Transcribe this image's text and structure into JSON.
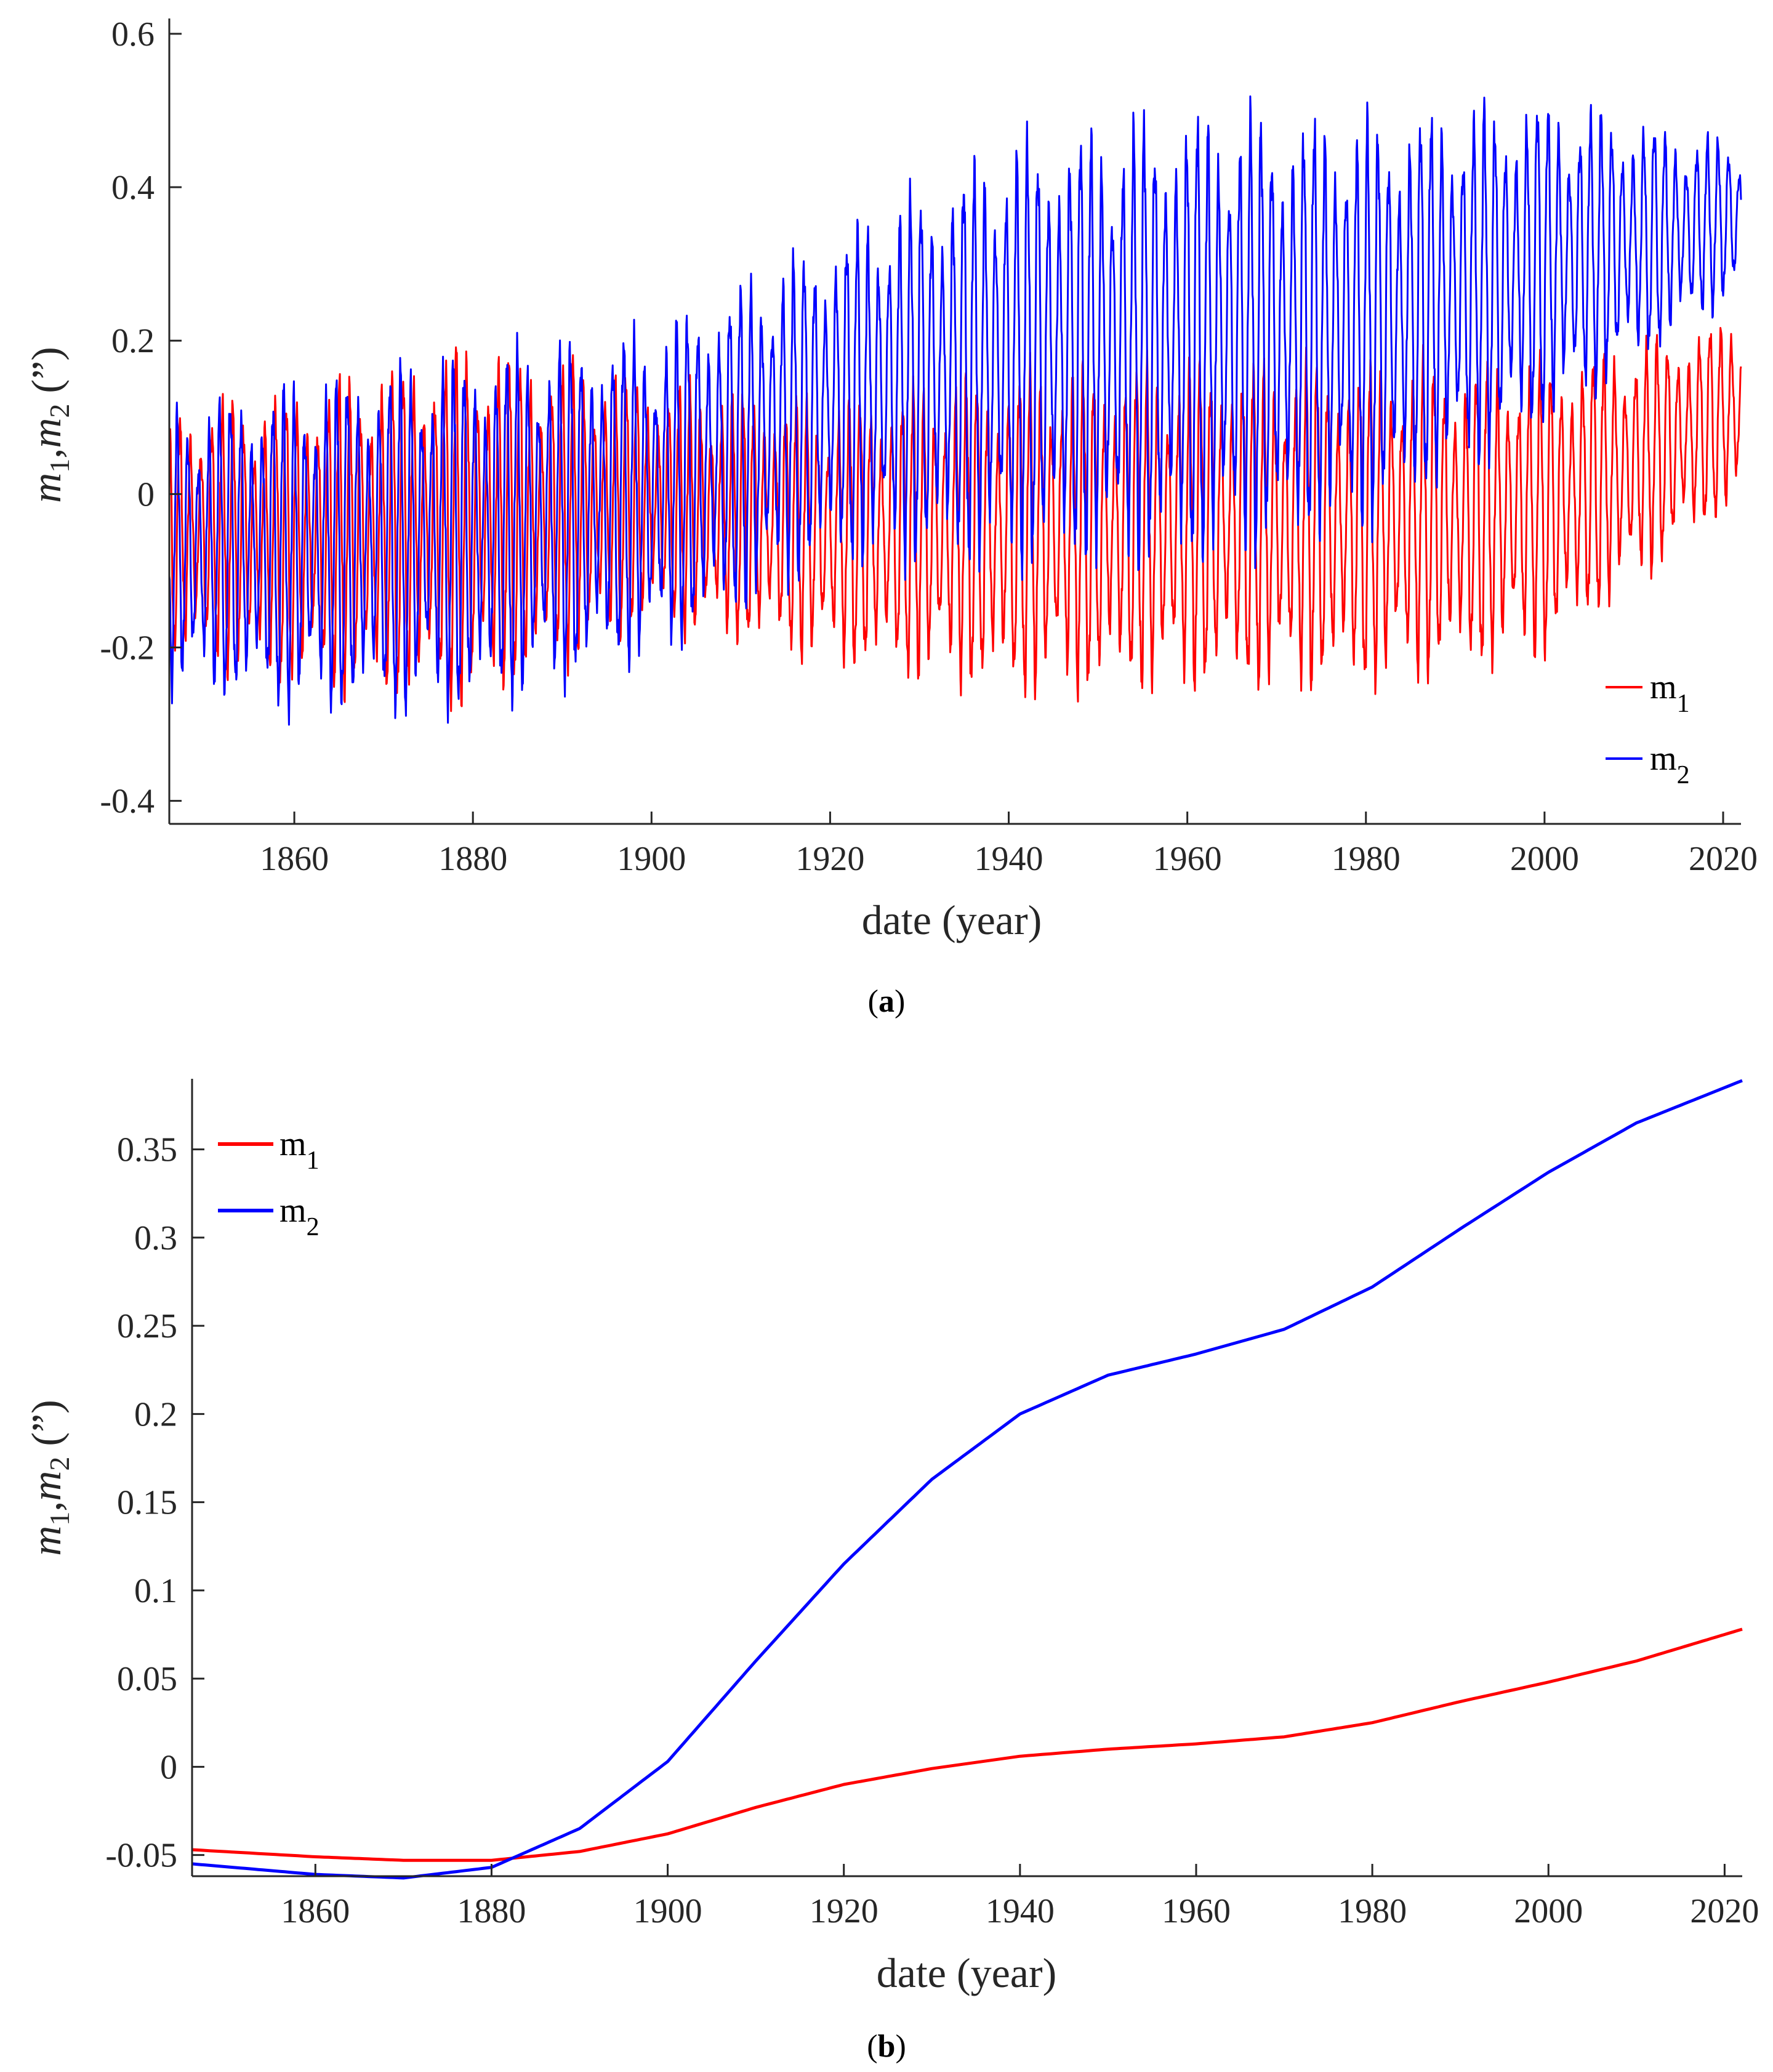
{
  "chart_data": [
    {
      "panel": "a",
      "caption_label": "a",
      "type": "line",
      "title": "",
      "xlabel": "date (year)",
      "ylabel": "m1,m2 (”)",
      "ylabel_parts": {
        "var1": "m",
        "sub1": "1",
        "sep": ",",
        "var2": "m",
        "sub2": "2",
        "unit": " (”)"
      },
      "xlim": [
        1846,
        2022
      ],
      "ylim": [
        -0.43,
        0.62
      ],
      "xticks": [
        1860,
        1880,
        1900,
        1920,
        1940,
        1960,
        1980,
        2000,
        2020
      ],
      "xtick_labels": [
        "1860",
        "1880",
        "1900",
        "1920",
        "1940",
        "1960",
        "1980",
        "2000",
        "2020"
      ],
      "yticks": [
        -0.4,
        -0.2,
        0,
        0.2,
        0.4,
        0.6
      ],
      "ytick_labels": [
        "-0.4",
        "-0.2",
        "0",
        "0.2",
        "0.4",
        "0.6"
      ],
      "legend_placement": "bottom-right",
      "series": [
        {
          "name": "m1",
          "legend_base": "m",
          "legend_sub": "1",
          "color": "#ff0000",
          "model": "oscillation",
          "x": [
            1846,
            1860,
            1880,
            1900,
            1920,
            1940,
            1960,
            1980,
            2000,
            2022
          ],
          "center": [
            -0.05,
            -0.06,
            -0.04,
            -0.01,
            -0.05,
            -0.05,
            -0.04,
            -0.04,
            -0.02,
            0.11
          ],
          "amplitude": [
            0.15,
            0.18,
            0.22,
            0.15,
            0.16,
            0.2,
            0.2,
            0.2,
            0.18,
            0.11
          ],
          "period_years": 1.19,
          "beat_period_years": 6.4
        },
        {
          "name": "m2",
          "legend_base": "m",
          "legend_sub": "2",
          "color": "#0000ff",
          "model": "oscillation",
          "x": [
            1846,
            1860,
            1880,
            1900,
            1920,
            1940,
            1960,
            1980,
            2000,
            2022
          ],
          "center": [
            -0.07,
            -0.07,
            -0.05,
            0.0,
            0.12,
            0.18,
            0.2,
            0.22,
            0.3,
            0.36
          ],
          "amplitude": [
            0.17,
            0.2,
            0.22,
            0.2,
            0.2,
            0.26,
            0.28,
            0.25,
            0.2,
            0.09
          ],
          "period_years": 1.19,
          "beat_period_years": 6.4
        }
      ]
    },
    {
      "panel": "b",
      "caption_label": "b",
      "type": "line",
      "title": "",
      "xlabel": "date (year)",
      "ylabel": "m1,m2 (”)",
      "ylabel_parts": {
        "var1": "m",
        "sub1": "1",
        "sep": ",",
        "var2": "m",
        "sub2": "2",
        "unit": " (”)"
      },
      "xlim": [
        1846,
        2022
      ],
      "ylim": [
        -0.062,
        0.39
      ],
      "xticks": [
        1860,
        1880,
        1900,
        1920,
        1940,
        1960,
        1980,
        2000,
        2020
      ],
      "xtick_labels": [
        "1860",
        "1880",
        "1900",
        "1920",
        "1940",
        "1960",
        "1980",
        "2000",
        "2020"
      ],
      "yticks": [
        -0.05,
        0,
        0.05,
        0.1,
        0.15,
        0.2,
        0.25,
        0.3,
        0.35
      ],
      "ytick_labels": [
        "-0.05",
        "0",
        "0.05",
        "0.1",
        "0.15",
        "0.2",
        "0.25",
        "0.3",
        "0.35"
      ],
      "legend_placement": "top-left",
      "series": [
        {
          "name": "m1",
          "legend_base": "m",
          "legend_sub": "1",
          "color": "#ff0000",
          "x": [
            1846,
            1860,
            1870,
            1880,
            1890,
            1900,
            1910,
            1920,
            1930,
            1940,
            1950,
            1960,
            1970,
            1980,
            1990,
            2000,
            2010,
            2022
          ],
          "y": [
            -0.047,
            -0.051,
            -0.053,
            -0.053,
            -0.048,
            -0.038,
            -0.023,
            -0.01,
            -0.001,
            0.006,
            0.01,
            0.013,
            0.017,
            0.025,
            0.037,
            0.048,
            0.06,
            0.078
          ]
        },
        {
          "name": "m2",
          "legend_base": "m",
          "legend_sub": "2",
          "color": "#0000ff",
          "x": [
            1846,
            1860,
            1870,
            1880,
            1890,
            1900,
            1910,
            1920,
            1930,
            1940,
            1950,
            1960,
            1970,
            1980,
            1990,
            2000,
            2010,
            2022
          ],
          "y": [
            -0.055,
            -0.061,
            -0.063,
            -0.057,
            -0.035,
            0.003,
            0.06,
            0.115,
            0.163,
            0.2,
            0.222,
            0.234,
            0.248,
            0.272,
            0.305,
            0.337,
            0.365,
            0.389
          ]
        }
      ]
    }
  ]
}
